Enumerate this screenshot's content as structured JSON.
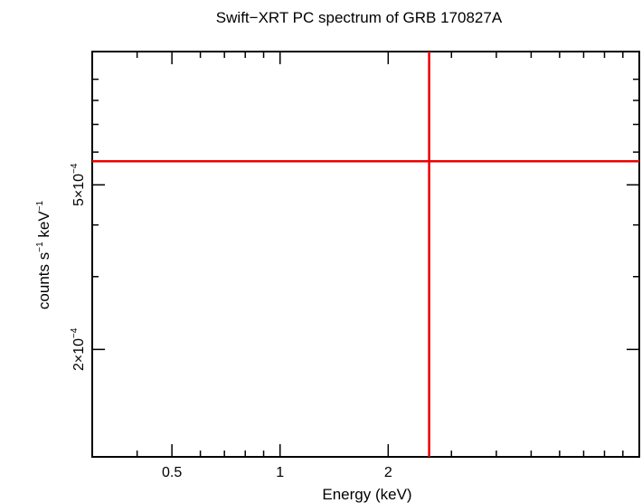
{
  "chart_data": {
    "type": "scatter",
    "title": "Swift−XRT PC spectrum of GRB 170827A",
    "xlabel": "Energy (keV)",
    "ylabel": {
      "base": "counts s",
      "exp1": "−1",
      "mid": " keV",
      "exp2": "−1"
    },
    "xscale": "log",
    "yscale": "log",
    "xlim": [
      0.3,
      10
    ],
    "ylim": [
      0.00011,
      0.00105
    ],
    "xticks_major": [
      {
        "value": 0.5,
        "label": "0.5"
      },
      {
        "value": 1,
        "label": "1"
      },
      {
        "value": 2,
        "label": "2"
      }
    ],
    "xticks_minor": [
      0.4,
      0.6,
      0.7,
      0.8,
      0.9,
      3,
      4,
      5,
      6,
      7,
      8,
      9
    ],
    "yticks_major": [
      {
        "value": 0.0002,
        "mantissa": "2×10",
        "exp": "−4"
      },
      {
        "value": 0.0005,
        "mantissa": "5×10",
        "exp": "−4"
      }
    ],
    "yticks_minor": [
      0.0003,
      0.0004,
      0.0006,
      0.0007,
      0.0008,
      0.0009
    ],
    "data_point": {
      "x": 2.6,
      "y": 0.00057,
      "xerr": [
        0.3,
        10
      ],
      "yerr": [
        0.00011,
        0.00105
      ],
      "color": "#ee0000"
    },
    "grid": false,
    "legend": "none"
  }
}
